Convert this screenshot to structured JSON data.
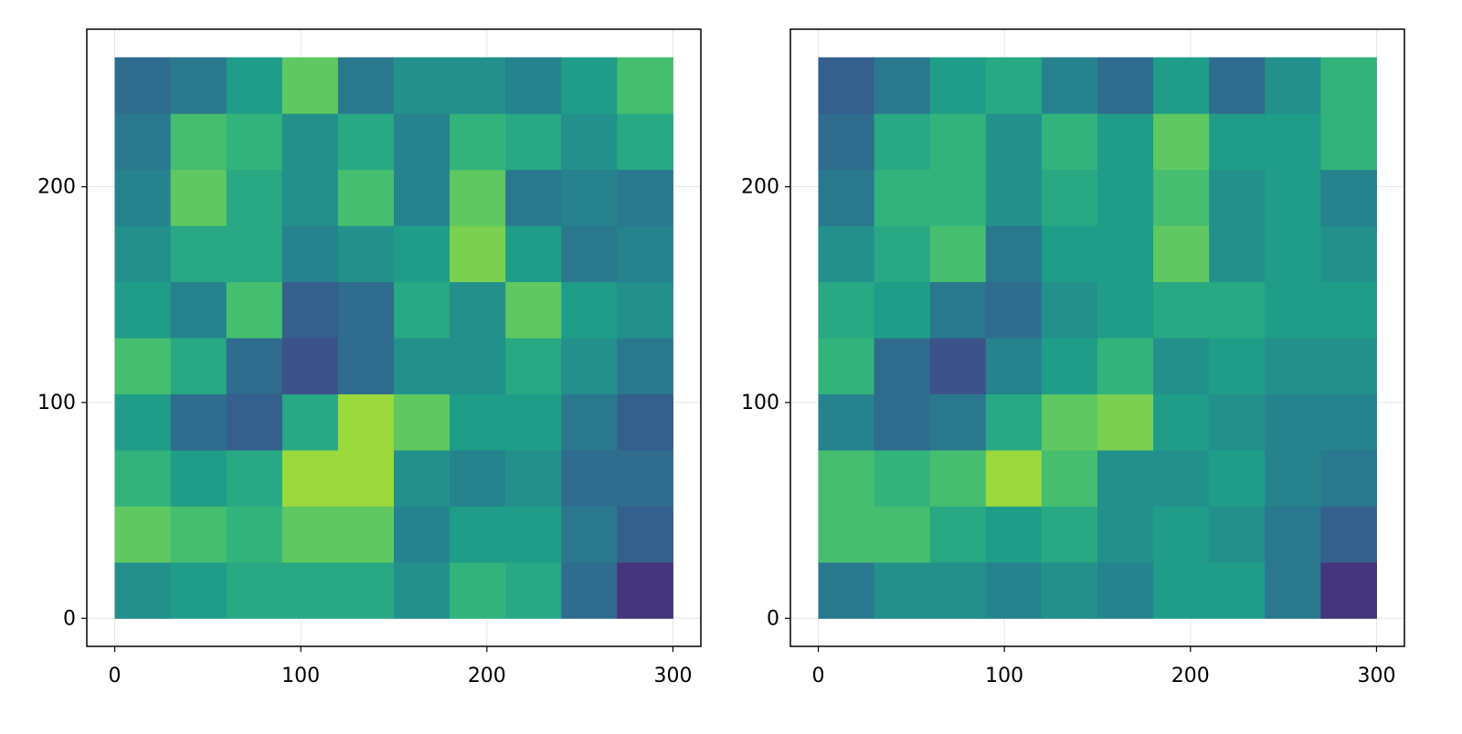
{
  "chart_data": [
    {
      "type": "heatmap",
      "colormap": "viridis",
      "clim": [
        0,
        1
      ],
      "grid": true,
      "xbins": [
        0,
        30,
        60,
        90,
        120,
        150,
        180,
        210,
        240,
        270,
        300
      ],
      "ybins": [
        0,
        26,
        52,
        78,
        104,
        130,
        156,
        182,
        208,
        234,
        260
      ],
      "values": [
        [
          0.5,
          0.55,
          0.6,
          0.6,
          0.6,
          0.5,
          0.65,
          0.6,
          0.35,
          0.15
        ],
        [
          0.75,
          0.7,
          0.65,
          0.75,
          0.75,
          0.45,
          0.55,
          0.55,
          0.4,
          0.3
        ],
        [
          0.65,
          0.55,
          0.6,
          0.85,
          0.85,
          0.5,
          0.45,
          0.5,
          0.35,
          0.35
        ],
        [
          0.55,
          0.35,
          0.3,
          0.6,
          0.85,
          0.75,
          0.55,
          0.55,
          0.4,
          0.3
        ],
        [
          0.7,
          0.6,
          0.35,
          0.25,
          0.35,
          0.5,
          0.5,
          0.6,
          0.5,
          0.4
        ],
        [
          0.55,
          0.45,
          0.7,
          0.3,
          0.35,
          0.6,
          0.5,
          0.75,
          0.55,
          0.5
        ],
        [
          0.5,
          0.6,
          0.6,
          0.45,
          0.5,
          0.55,
          0.8,
          0.55,
          0.4,
          0.45
        ],
        [
          0.45,
          0.75,
          0.6,
          0.5,
          0.7,
          0.45,
          0.75,
          0.4,
          0.45,
          0.4
        ],
        [
          0.4,
          0.7,
          0.65,
          0.5,
          0.6,
          0.45,
          0.65,
          0.6,
          0.5,
          0.6
        ],
        [
          0.35,
          0.4,
          0.55,
          0.75,
          0.4,
          0.5,
          0.5,
          0.45,
          0.55,
          0.7
        ]
      ],
      "xlim": [
        -15,
        315
      ],
      "ylim": [
        -13,
        273
      ],
      "xticks": [
        0,
        100,
        200,
        300
      ],
      "yticks": [
        0,
        100,
        200
      ]
    },
    {
      "type": "heatmap",
      "colormap": "viridis",
      "clim": [
        0,
        1
      ],
      "grid": true,
      "xbins": [
        0,
        30,
        60,
        90,
        120,
        150,
        180,
        210,
        240,
        270,
        300
      ],
      "ybins": [
        0,
        26,
        52,
        78,
        104,
        130,
        156,
        182,
        208,
        234,
        260
      ],
      "values": [
        [
          0.4,
          0.5,
          0.5,
          0.45,
          0.5,
          0.45,
          0.55,
          0.55,
          0.4,
          0.15
        ],
        [
          0.7,
          0.7,
          0.6,
          0.55,
          0.6,
          0.5,
          0.55,
          0.5,
          0.4,
          0.3
        ],
        [
          0.7,
          0.65,
          0.7,
          0.85,
          0.7,
          0.5,
          0.5,
          0.55,
          0.45,
          0.4
        ],
        [
          0.45,
          0.35,
          0.4,
          0.6,
          0.75,
          0.8,
          0.55,
          0.5,
          0.45,
          0.45
        ],
        [
          0.65,
          0.35,
          0.25,
          0.45,
          0.55,
          0.65,
          0.5,
          0.55,
          0.5,
          0.5
        ],
        [
          0.6,
          0.55,
          0.4,
          0.35,
          0.5,
          0.55,
          0.6,
          0.6,
          0.55,
          0.55
        ],
        [
          0.5,
          0.6,
          0.7,
          0.4,
          0.55,
          0.55,
          0.75,
          0.5,
          0.55,
          0.5
        ],
        [
          0.4,
          0.65,
          0.65,
          0.5,
          0.6,
          0.55,
          0.7,
          0.5,
          0.55,
          0.45
        ],
        [
          0.35,
          0.6,
          0.65,
          0.5,
          0.65,
          0.55,
          0.75,
          0.55,
          0.55,
          0.65
        ],
        [
          0.3,
          0.4,
          0.55,
          0.6,
          0.45,
          0.35,
          0.55,
          0.35,
          0.5,
          0.65
        ]
      ],
      "xlim": [
        -15,
        315
      ],
      "ylim": [
        -13,
        273
      ],
      "xticks": [
        0,
        100,
        200,
        300
      ],
      "yticks": [
        0,
        100,
        200
      ]
    }
  ]
}
